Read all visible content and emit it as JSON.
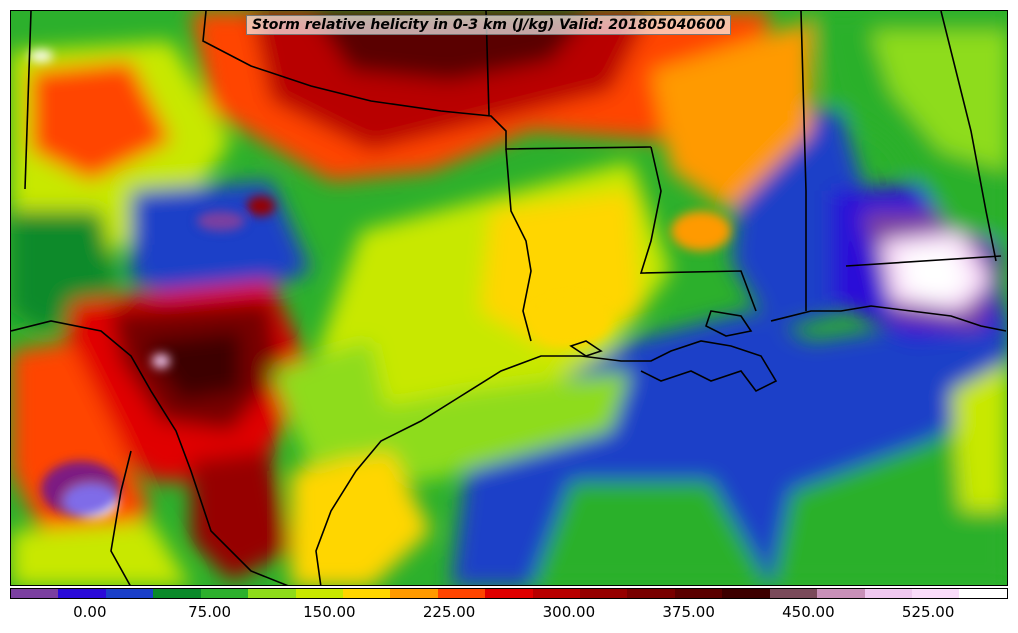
{
  "title": "Storm relative helicity in 0-3 km (J/kg) Valid: 201805040600",
  "colorbar": {
    "colors": [
      "#7b3fa0",
      "#2a0ad8",
      "#1a3fc8",
      "#0a8a2a",
      "#2cb02c",
      "#8edc1a",
      "#c8e800",
      "#ffd600",
      "#ff9a00",
      "#ff4500",
      "#e00000",
      "#b80000",
      "#960000",
      "#780000",
      "#5a0000",
      "#3c0000",
      "#7a4a5a",
      "#c890b8",
      "#f0c8f0",
      "#fadcfa",
      "#ffffff"
    ],
    "tick_labels": [
      "0.00",
      "75.00",
      "150.00",
      "225.00",
      "300.00",
      "375.00",
      "450.00",
      "525.00"
    ],
    "tick_values": [
      0,
      75,
      150,
      225,
      300,
      375,
      450,
      525
    ],
    "range": [
      -50,
      575
    ]
  },
  "map": {
    "field": "Storm relative helicity 0-3 km",
    "units": "J/kg",
    "valid": "201805040600"
  }
}
